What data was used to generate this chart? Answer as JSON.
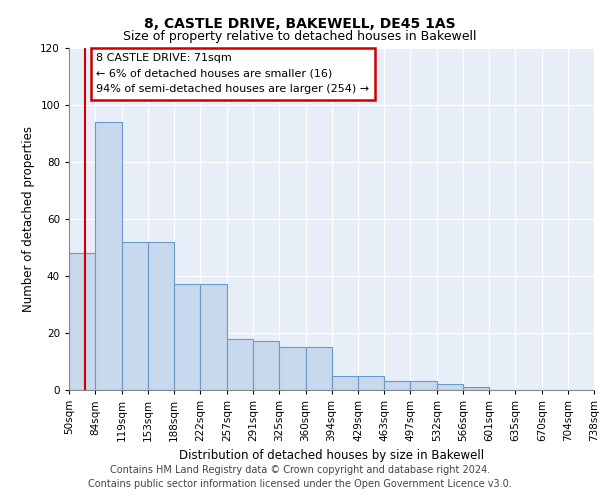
{
  "title1": "8, CASTLE DRIVE, BAKEWELL, DE45 1AS",
  "title2": "Size of property relative to detached houses in Bakewell",
  "xlabel": "Distribution of detached houses by size in Bakewell",
  "ylabel": "Number of detached properties",
  "footer1": "Contains HM Land Registry data © Crown copyright and database right 2024.",
  "footer2": "Contains public sector information licensed under the Open Government Licence v3.0.",
  "annotation_line1": "8 CASTLE DRIVE: 71sqm",
  "annotation_line2": "← 6% of detached houses are smaller (16)",
  "annotation_line3": "94% of semi-detached houses are larger (254) →",
  "property_size": 71,
  "bin_edges": [
    50,
    84,
    119,
    153,
    188,
    222,
    257,
    291,
    325,
    360,
    394,
    429,
    463,
    497,
    532,
    566,
    601,
    635,
    670,
    704,
    738
  ],
  "bar_heights": [
    48,
    94,
    52,
    52,
    37,
    37,
    18,
    17,
    15,
    15,
    5,
    5,
    3,
    3,
    2,
    1,
    0,
    0,
    0,
    0
  ],
  "bar_color": "#c8d8ed",
  "bar_edge_color": "#6699cc",
  "red_line_color": "#cc0000",
  "background_color": "#e8eef8",
  "ylim": [
    0,
    120
  ],
  "yticks": [
    0,
    20,
    40,
    60,
    80,
    100,
    120
  ],
  "annotation_box_color": "#ffffff",
  "annotation_box_edge_color": "#cc0000",
  "title1_fontsize": 10,
  "title2_fontsize": 9,
  "xlabel_fontsize": 8.5,
  "ylabel_fontsize": 8.5,
  "footer_fontsize": 7,
  "annotation_fontsize": 8,
  "tick_fontsize": 7.5
}
